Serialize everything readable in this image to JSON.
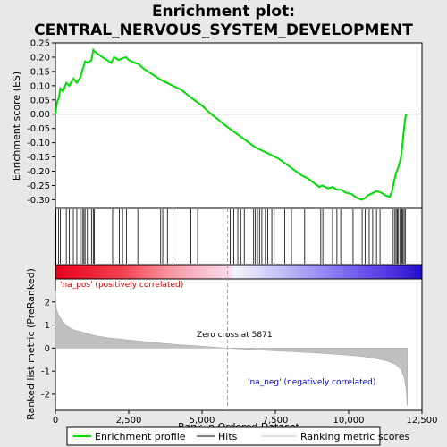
{
  "chart_data": {
    "type": "line",
    "title": "Enrichment plot:\nCENTRAL_NERVOUS_SYSTEM_DEVELOPMENT",
    "xlabel": "Rank in Ordered Dataset",
    "ylabel_top": "Enrichment score (ES)",
    "ylabel_bottom": "Ranked list metric (PreRanked)",
    "xlim": [
      0,
      12500
    ],
    "es_ylim": [
      -0.33,
      0.25
    ],
    "metric_ylim": [
      -2.7,
      3.0
    ],
    "x_ticks": [
      0,
      2500,
      5000,
      7500,
      10000,
      12500
    ],
    "x_tick_labels": [
      "0",
      "2,500",
      "5,000",
      "7,500",
      "10,000",
      "12,500"
    ],
    "es_ticks": [
      0.25,
      0.2,
      0.15,
      0.1,
      0.05,
      0.0,
      -0.05,
      -0.1,
      -0.15,
      -0.2,
      -0.25,
      -0.3
    ],
    "es_tick_labels": [
      "0.25",
      "0.20",
      "0.15",
      "0.10",
      "0.05",
      "0.00",
      "-0.05",
      "-0.10",
      "-0.15",
      "-0.20",
      "-0.25",
      "-0.30"
    ],
    "metric_ticks": [
      2,
      1,
      0,
      -1,
      -2
    ],
    "metric_tick_labels": [
      "2",
      "1",
      "0",
      "-1",
      "-2"
    ],
    "grid": false,
    "series": [
      {
        "name": "Enrichment profile",
        "color": "#00dd00",
        "x": [
          0,
          60,
          110,
          170,
          260,
          370,
          470,
          610,
          730,
          850,
          920,
          970,
          1010,
          1090,
          1230,
          1290,
          1330,
          1600,
          1900,
          2000,
          2150,
          2250,
          2400,
          2500,
          2700,
          2850,
          3000,
          3300,
          3600,
          3700,
          4000,
          4300,
          4600,
          4800,
          5000,
          5200,
          5500,
          5800,
          6000,
          6200,
          6400,
          6600,
          6800,
          7000,
          7200,
          7300,
          7400,
          7600,
          7800,
          8000,
          8200,
          8400,
          8600,
          8800,
          9000,
          9100,
          9300,
          9450,
          9600,
          9750,
          9900,
          10100,
          10300,
          10450,
          10550,
          10650,
          10750,
          10850,
          10950,
          11100,
          11250,
          11400,
          11480,
          11560,
          11620,
          11680,
          11740,
          11800,
          11840,
          11880,
          11920,
          11960
        ],
        "y": [
          0.0,
          0.045,
          0.055,
          0.09,
          0.08,
          0.11,
          0.1,
          0.125,
          0.11,
          0.13,
          0.155,
          0.17,
          0.185,
          0.18,
          0.19,
          0.225,
          0.22,
          0.2,
          0.18,
          0.2,
          0.19,
          0.195,
          0.2,
          0.19,
          0.18,
          0.175,
          0.16,
          0.14,
          0.12,
          0.115,
          0.1,
          0.085,
          0.06,
          0.045,
          0.03,
          0.01,
          -0.015,
          -0.04,
          -0.055,
          -0.07,
          -0.085,
          -0.1,
          -0.115,
          -0.125,
          -0.135,
          -0.14,
          -0.145,
          -0.155,
          -0.17,
          -0.185,
          -0.2,
          -0.215,
          -0.225,
          -0.24,
          -0.255,
          -0.25,
          -0.26,
          -0.255,
          -0.265,
          -0.265,
          -0.275,
          -0.28,
          -0.295,
          -0.3,
          -0.295,
          -0.285,
          -0.28,
          -0.275,
          -0.27,
          -0.275,
          -0.285,
          -0.29,
          -0.27,
          -0.23,
          -0.205,
          -0.19,
          -0.17,
          -0.14,
          -0.1,
          -0.06,
          -0.02,
          0.0
        ]
      }
    ],
    "hits": [
      20,
      110,
      170,
      260,
      370,
      470,
      610,
      730,
      850,
      920,
      970,
      1010,
      1090,
      1230,
      1290,
      1330,
      1950,
      2180,
      2290,
      2420,
      2810,
      3590,
      3660,
      3820,
      4010,
      4620,
      4850,
      5720,
      5960,
      6080,
      6220,
      6320,
      6440,
      6760,
      6820,
      6890,
      6960,
      7040,
      7160,
      7240,
      7380,
      7460,
      7820,
      8050,
      8500,
      9050,
      9120,
      9450,
      9600,
      9730,
      10150,
      10460,
      10560,
      10700,
      10820,
      10950,
      11070,
      11520,
      11580,
      11620,
      11660,
      11700,
      11760,
      11810,
      11850,
      11890,
      11930
    ],
    "metric": {
      "name": "Ranking metric scores",
      "x": [
        0,
        30,
        80,
        150,
        250,
        400,
        600,
        900,
        1300,
        1800,
        2500,
        3300,
        4200,
        5000,
        5871,
        6500,
        7200,
        8000,
        8800,
        9600,
        10400,
        10900,
        11300,
        11600,
        11800,
        11900,
        11960,
        12000
      ],
      "y": [
        2.5,
        1.7,
        1.5,
        1.35,
        1.15,
        0.95,
        0.8,
        0.7,
        0.55,
        0.45,
        0.35,
        0.25,
        0.15,
        0.08,
        0.0,
        -0.05,
        -0.1,
        -0.15,
        -0.2,
        -0.27,
        -0.35,
        -0.45,
        -0.55,
        -0.7,
        -0.95,
        -1.3,
        -1.8,
        -2.5
      ]
    },
    "annotations": {
      "pos_label": "'na_pos' (positively correlated)",
      "neg_label": "'na_neg' (negatively correlated)",
      "zero_cross": "Zero cross at 5871",
      "zero_cross_x": 5871
    },
    "legend": {
      "placement": "bottom",
      "items": [
        {
          "label": "Enrichment profile",
          "color": "#00dd00",
          "kind": "line"
        },
        {
          "label": "Hits",
          "color": "#000000",
          "kind": "line"
        },
        {
          "label": "Ranking metric scores",
          "color": "#c0c0c0",
          "kind": "line"
        }
      ]
    },
    "colors": {
      "pos_text": "#cc0000",
      "neg_text": "#0000cc",
      "metric_fill": "#c0c0c0",
      "zero_line": "#a0a0a0"
    }
  }
}
